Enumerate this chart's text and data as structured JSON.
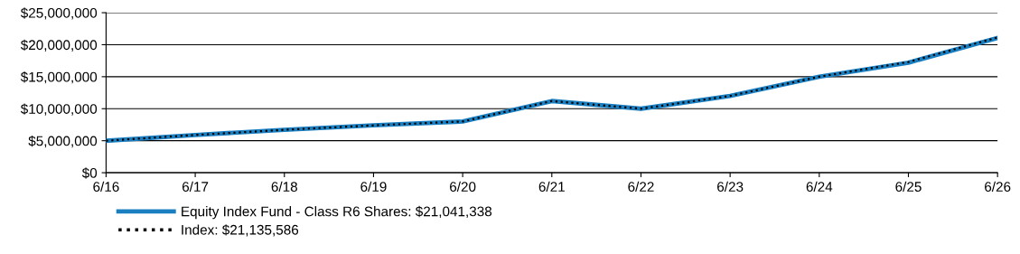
{
  "chart_data": {
    "type": "line",
    "categories": [
      "6/16",
      "6/17",
      "6/18",
      "6/19",
      "6/20",
      "6/21",
      "6/22",
      "6/23",
      "6/24",
      "6/25",
      "6/26"
    ],
    "series": [
      {
        "name": "Index: $21,135,586",
        "color": "#000000",
        "line_style": "dotted",
        "values": [
          5000000,
          5900000,
          6700000,
          7400000,
          8000000,
          11200000,
          10000000,
          12000000,
          15000000,
          17300000,
          21135586
        ]
      },
      {
        "name": "Equity Index Fund - Class R6 Shares: $21,041,338",
        "color": "#1a7fc1",
        "line_style": "solid",
        "values": [
          5000000,
          5900000,
          6700000,
          7400000,
          8000000,
          11200000,
          10000000,
          12000000,
          15000000,
          17200000,
          21041338
        ]
      }
    ],
    "ylim": [
      0,
      25000000
    ],
    "yticks": [
      {
        "value": 0,
        "label": "$0"
      },
      {
        "value": 5000000,
        "label": "$5,000,000"
      },
      {
        "value": 10000000,
        "label": "$10,000,000"
      },
      {
        "value": 15000000,
        "label": "$15,000,000"
      },
      {
        "value": 20000000,
        "label": "$20,000,000"
      },
      {
        "value": 25000000,
        "label": "$25,000,000"
      }
    ],
    "grid": "y",
    "legend": "bottom",
    "marker": "none"
  }
}
